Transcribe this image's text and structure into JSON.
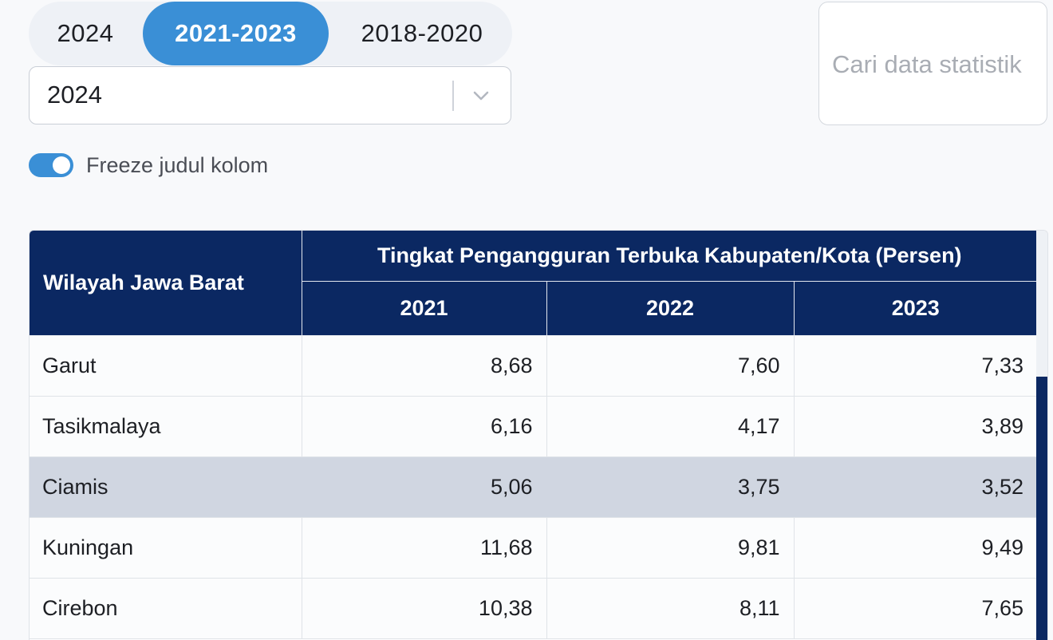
{
  "tabs": [
    {
      "label": "2024",
      "active": false
    },
    {
      "label": "2021-2023",
      "active": true
    },
    {
      "label": "2018-2020",
      "active": false
    }
  ],
  "year_select": {
    "value": "2024"
  },
  "search": {
    "placeholder": "Cari data statistik"
  },
  "freeze_toggle": {
    "label": "Freeze judul kolom",
    "on": true
  },
  "colors": {
    "accent": "#3a8fd6",
    "header_bg": "#0b2862",
    "highlight_row": "#d0d6e1"
  },
  "table": {
    "region_header": "Wilayah Jawa Barat",
    "group_header": "Tingkat Pengangguran Terbuka Kabupaten/Kota (Persen)",
    "years": [
      "2021",
      "2022",
      "2023"
    ],
    "rows": [
      {
        "name": "Garut",
        "values": [
          "8,68",
          "7,60",
          "7,33"
        ]
      },
      {
        "name": "Tasikmalaya",
        "values": [
          "6,16",
          "4,17",
          "3,89"
        ]
      },
      {
        "name": "Ciamis",
        "values": [
          "5,06",
          "3,75",
          "3,52"
        ],
        "highlighted": true
      },
      {
        "name": "Kuningan",
        "values": [
          "11,68",
          "9,81",
          "9,49"
        ]
      },
      {
        "name": "Cirebon",
        "values": [
          "10,38",
          "8,11",
          "7,65"
        ]
      }
    ]
  }
}
